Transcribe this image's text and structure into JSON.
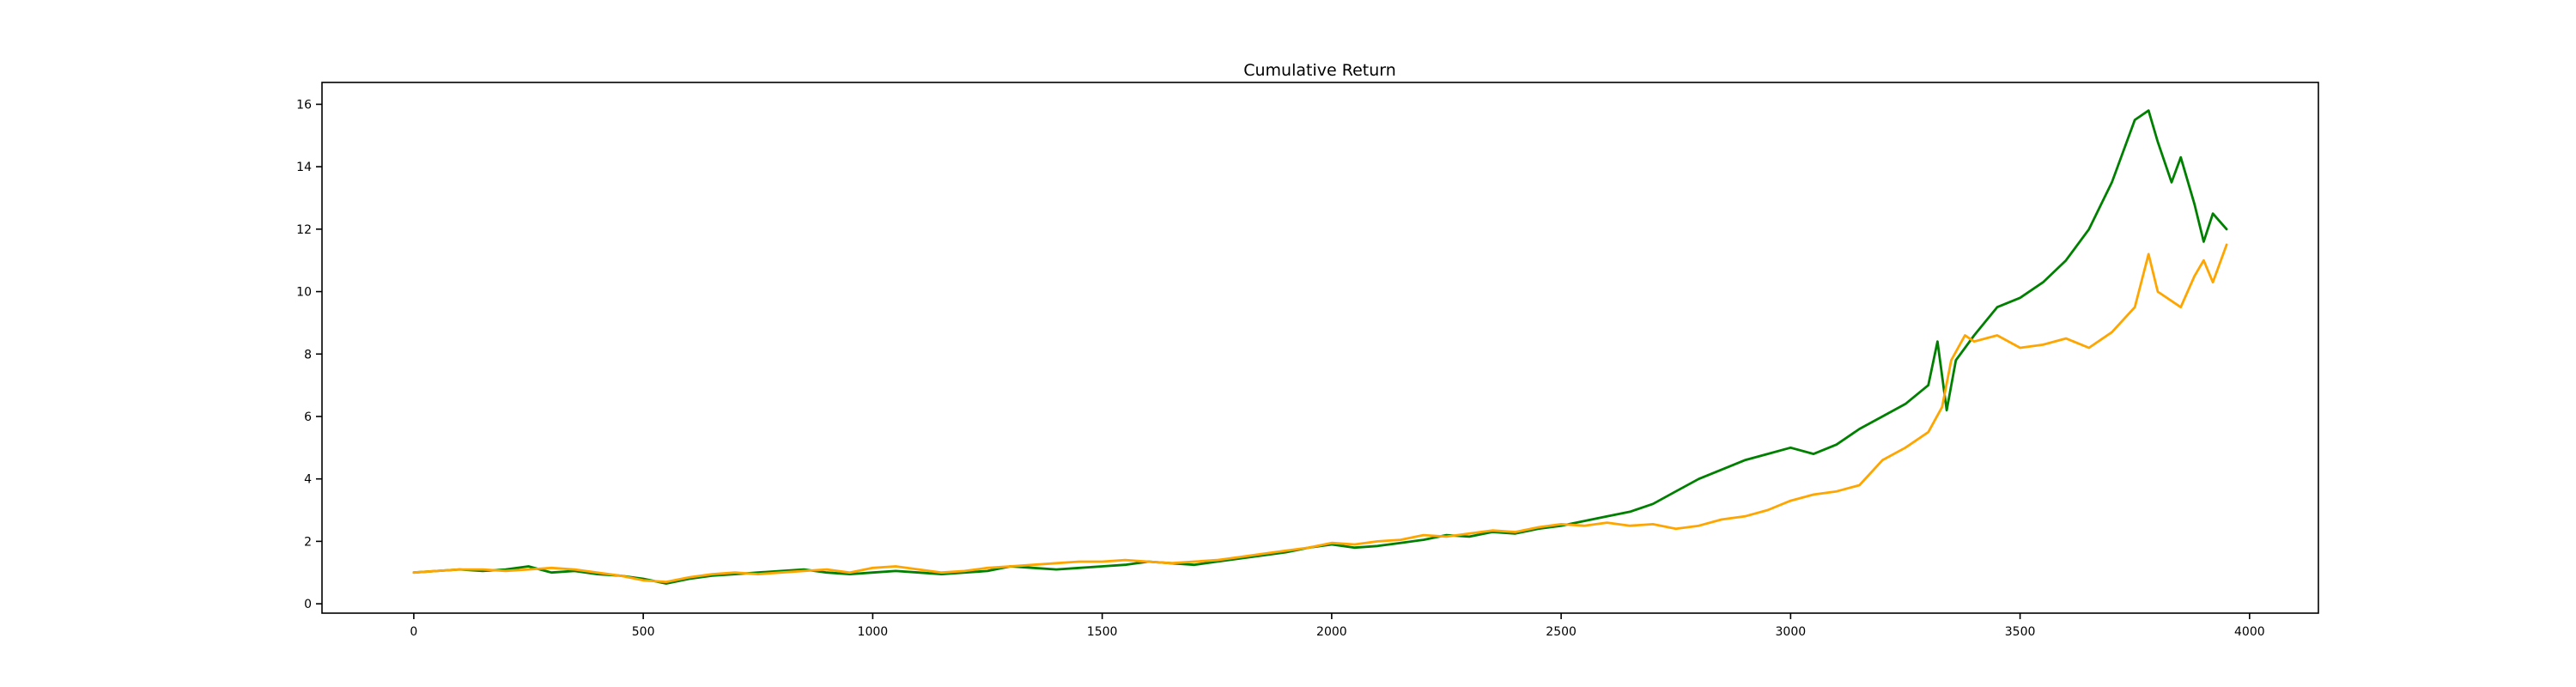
{
  "chart_data": {
    "type": "line",
    "title": "Cumulative Return",
    "xlabel": "",
    "ylabel": "",
    "xlim": [
      -200,
      4150
    ],
    "ylim": [
      -0.3,
      16.7
    ],
    "xticks": [
      0,
      500,
      1000,
      1500,
      2000,
      2500,
      3000,
      3500,
      4000
    ],
    "yticks": [
      0,
      2,
      4,
      6,
      8,
      10,
      12,
      14,
      16
    ],
    "grid": false,
    "legend": "none",
    "series": [
      {
        "color": "#008000",
        "x": [
          0,
          50,
          100,
          150,
          200,
          250,
          300,
          350,
          400,
          450,
          500,
          550,
          600,
          650,
          700,
          750,
          800,
          850,
          900,
          950,
          1000,
          1050,
          1100,
          1150,
          1200,
          1250,
          1300,
          1350,
          1400,
          1450,
          1500,
          1550,
          1600,
          1650,
          1700,
          1750,
          1800,
          1850,
          1900,
          1950,
          2000,
          2050,
          2100,
          2150,
          2200,
          2250,
          2300,
          2350,
          2400,
          2450,
          2500,
          2550,
          2600,
          2650,
          2700,
          2750,
          2800,
          2850,
          2900,
          2950,
          3000,
          3050,
          3100,
          3150,
          3200,
          3250,
          3300,
          3320,
          3340,
          3360,
          3400,
          3450,
          3500,
          3550,
          3600,
          3650,
          3700,
          3750,
          3780,
          3800,
          3830,
          3850,
          3880,
          3900,
          3920,
          3950
        ],
        "y": [
          1.0,
          1.05,
          1.1,
          1.05,
          1.1,
          1.2,
          1.0,
          1.05,
          0.95,
          0.9,
          0.8,
          0.65,
          0.8,
          0.9,
          0.95,
          1.0,
          1.05,
          1.1,
          1.0,
          0.95,
          1.0,
          1.05,
          1.0,
          0.95,
          1.0,
          1.05,
          1.2,
          1.15,
          1.1,
          1.15,
          1.2,
          1.25,
          1.35,
          1.3,
          1.25,
          1.35,
          1.45,
          1.55,
          1.65,
          1.8,
          1.9,
          1.8,
          1.85,
          1.95,
          2.05,
          2.2,
          2.15,
          2.3,
          2.25,
          2.4,
          2.5,
          2.65,
          2.8,
          2.95,
          3.2,
          3.6,
          4.0,
          4.3,
          4.6,
          4.8,
          5.0,
          4.8,
          5.1,
          5.6,
          6.0,
          6.4,
          7.0,
          8.4,
          6.2,
          7.8,
          8.6,
          9.5,
          9.8,
          10.3,
          11.0,
          12.0,
          13.5,
          15.5,
          15.8,
          14.8,
          13.5,
          14.3,
          12.8,
          11.6,
          12.5,
          12.0
        ]
      },
      {
        "color": "#FFA500",
        "x": [
          0,
          50,
          100,
          150,
          200,
          250,
          300,
          350,
          400,
          450,
          500,
          550,
          600,
          650,
          700,
          750,
          800,
          850,
          900,
          950,
          1000,
          1050,
          1100,
          1150,
          1200,
          1250,
          1300,
          1350,
          1400,
          1450,
          1500,
          1550,
          1600,
          1650,
          1700,
          1750,
          1800,
          1850,
          1900,
          1950,
          2000,
          2050,
          2100,
          2150,
          2200,
          2250,
          2300,
          2350,
          2400,
          2450,
          2500,
          2550,
          2600,
          2650,
          2700,
          2750,
          2800,
          2850,
          2900,
          2950,
          3000,
          3050,
          3100,
          3150,
          3200,
          3250,
          3300,
          3330,
          3350,
          3380,
          3400,
          3450,
          3500,
          3550,
          3600,
          3650,
          3700,
          3750,
          3780,
          3800,
          3850,
          3880,
          3900,
          3920,
          3950
        ],
        "y": [
          1.0,
          1.05,
          1.1,
          1.1,
          1.05,
          1.1,
          1.15,
          1.1,
          1.0,
          0.9,
          0.75,
          0.7,
          0.85,
          0.95,
          1.0,
          0.95,
          1.0,
          1.05,
          1.1,
          1.0,
          1.15,
          1.2,
          1.1,
          1.0,
          1.05,
          1.15,
          1.2,
          1.25,
          1.3,
          1.35,
          1.35,
          1.4,
          1.35,
          1.3,
          1.35,
          1.4,
          1.5,
          1.6,
          1.7,
          1.8,
          1.95,
          1.9,
          2.0,
          2.05,
          2.2,
          2.15,
          2.25,
          2.35,
          2.3,
          2.45,
          2.55,
          2.5,
          2.6,
          2.5,
          2.55,
          2.4,
          2.5,
          2.7,
          2.8,
          3.0,
          3.3,
          3.5,
          3.6,
          3.8,
          4.6,
          5.0,
          5.5,
          6.3,
          7.8,
          8.6,
          8.4,
          8.6,
          8.2,
          8.3,
          8.5,
          8.2,
          8.7,
          9.5,
          11.2,
          10.0,
          9.5,
          10.5,
          11.0,
          10.3,
          11.5
        ]
      }
    ]
  }
}
